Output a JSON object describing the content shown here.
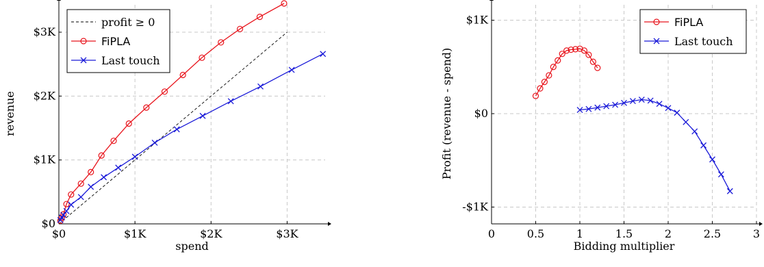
{
  "chart_data": [
    {
      "type": "line",
      "xlabel": "spend",
      "ylabel": "revenue",
      "xlim": [
        0,
        3500
      ],
      "ylim": [
        0,
        3450
      ],
      "x_ticks": [
        0,
        1000,
        2000,
        3000
      ],
      "x_tick_labels": [
        "$0",
        "$1K",
        "$2K",
        "$3K"
      ],
      "y_ticks": [
        0,
        1000,
        2000,
        3000
      ],
      "y_tick_labels": [
        "$0",
        "$1K",
        "$2K",
        "$3K"
      ],
      "grid": true,
      "legend_position": "top-left",
      "series": [
        {
          "name": "profit ≥ 0",
          "color": "#000000",
          "style": "dashed",
          "marker": "none",
          "x": [
            0,
            3000
          ],
          "y": [
            0,
            3000
          ]
        },
        {
          "name": "FiPLA",
          "color": "#e8141c",
          "style": "solid",
          "marker": "circle",
          "x": [
            20,
            40,
            60,
            100,
            160,
            290,
            420,
            560,
            720,
            920,
            1150,
            1390,
            1630,
            1880,
            2130,
            2380,
            2640,
            2960
          ],
          "y": [
            50,
            100,
            150,
            310,
            460,
            630,
            810,
            1070,
            1300,
            1570,
            1820,
            2070,
            2330,
            2600,
            2840,
            3050,
            3240,
            3450
          ]
        },
        {
          "name": "Last touch",
          "color": "#1a1ad8",
          "style": "solid",
          "marker": "x",
          "x": [
            20,
            40,
            60,
            100,
            160,
            290,
            420,
            590,
            780,
            1000,
            1260,
            1550,
            1890,
            2260,
            2650,
            3060,
            3470
          ],
          "y": [
            60,
            100,
            140,
            200,
            300,
            420,
            580,
            730,
            880,
            1050,
            1270,
            1480,
            1690,
            1920,
            2150,
            2410,
            2660
          ]
        }
      ]
    },
    {
      "type": "line",
      "xlabel": "Bidding multiplier",
      "ylabel": "Profit (revenue - spend)",
      "xlim": [
        0,
        3
      ],
      "ylim": [
        -1180,
        1180
      ],
      "x_ticks": [
        0,
        0.5,
        1,
        1.5,
        2,
        2.5,
        3
      ],
      "x_tick_labels": [
        "0",
        "0.5",
        "1",
        "1.5",
        "2",
        "2.5",
        "3"
      ],
      "y_ticks": [
        -1000,
        0,
        1000
      ],
      "y_tick_labels": [
        "-$1K",
        "$0",
        "$1K"
      ],
      "grid": true,
      "legend_position": "top-right",
      "series": [
        {
          "name": "FiPLA",
          "color": "#e8141c",
          "style": "solid",
          "marker": "circle",
          "x": [
            0.5,
            0.55,
            0.6,
            0.65,
            0.7,
            0.75,
            0.8,
            0.85,
            0.9,
            0.95,
            1.0,
            1.05,
            1.1,
            1.15,
            1.2
          ],
          "y": [
            190,
            270,
            340,
            410,
            500,
            570,
            640,
            675,
            685,
            690,
            695,
            675,
            630,
            555,
            490
          ]
        },
        {
          "name": "Last touch",
          "color": "#1a1ad8",
          "style": "solid",
          "marker": "x",
          "x": [
            1.0,
            1.1,
            1.2,
            1.3,
            1.4,
            1.5,
            1.6,
            1.7,
            1.8,
            1.9,
            2.0,
            2.1,
            2.2,
            2.3,
            2.4,
            2.5,
            2.6,
            2.7
          ],
          "y": [
            40,
            50,
            65,
            80,
            95,
            115,
            135,
            150,
            140,
            105,
            60,
            10,
            -90,
            -190,
            -340,
            -490,
            -650,
            -830
          ]
        }
      ]
    }
  ]
}
